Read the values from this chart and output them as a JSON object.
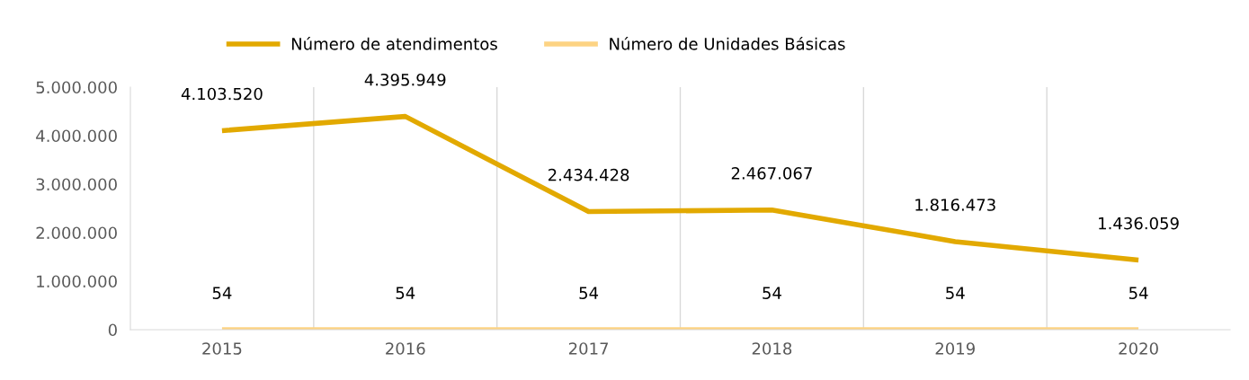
{
  "chart_data": {
    "type": "line",
    "categories": [
      "2015",
      "2016",
      "2017",
      "2018",
      "2019",
      "2020"
    ],
    "series": [
      {
        "name": "Número de atendimentos",
        "color": "#e2a900",
        "values": [
          4103520,
          4395949,
          2434428,
          2467067,
          1816473,
          1436059
        ],
        "value_labels": [
          "4.103.520",
          "4.395.949",
          "2.434.428",
          "2.467.067",
          "1.816.473",
          "1.436.059"
        ]
      },
      {
        "name": "Número de Unidades Básicas",
        "color": "#fdd383",
        "values": [
          54,
          54,
          54,
          54,
          54,
          54
        ],
        "value_labels": [
          "54",
          "54",
          "54",
          "54",
          "54",
          "54"
        ]
      }
    ],
    "ylim": [
      0,
      5000000
    ],
    "yticks": [
      0,
      {
        "value": 1000000,
        "label": "1.000.000"
      },
      {
        "value": 2000000,
        "label": "2.000.000"
      },
      {
        "value": 3000000,
        "label": "3.000.000"
      },
      {
        "value": 4000000,
        "label": "4.000.000"
      },
      {
        "value": 5000000,
        "label": "5.000.000"
      }
    ],
    "grid": "x",
    "legend": "top",
    "marker": "none",
    "line_style": "solid"
  }
}
